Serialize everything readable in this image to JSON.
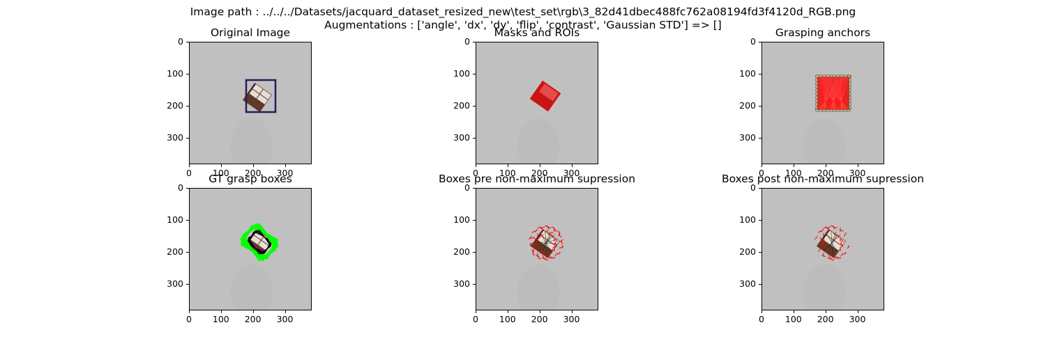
{
  "figure": {
    "title_line1": "Image path : ../../../Datasets/jacquard_dataset_resized_new\\test_set\\rgb\\3_82d41dbec488fc762a08194fd3f4120d_RGB.png",
    "title_line2": "Augmentations : ['angle', 'dx', 'dy', 'flip', 'contrast', 'Gaussian STD'] => []"
  },
  "axis": {
    "ticks": [
      "0",
      "100",
      "200",
      "300"
    ],
    "y_ticks": [
      "0",
      "100",
      "200",
      "300"
    ]
  },
  "panels": [
    {
      "id": "original",
      "title": "Original Image"
    },
    {
      "id": "masks",
      "title": "Masks and ROIs"
    },
    {
      "id": "anchors",
      "title": "Grasping anchors"
    },
    {
      "id": "gt",
      "title": "GT grasp boxes"
    },
    {
      "id": "pre",
      "title": "Boxes pre non-maximum supression"
    },
    {
      "id": "post",
      "title": "Boxes post non-maximum supression"
    }
  ],
  "colors": {
    "background": "#c0c0c0",
    "roi_box": "#2a1a5e",
    "mask": "#cc0000",
    "anchor": "#ff0000",
    "gt_box": "#00ff00",
    "pred_box": "#ff0000"
  }
}
